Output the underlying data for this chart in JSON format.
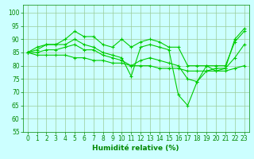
{
  "lines": [
    {
      "x": [
        0,
        1,
        2,
        3,
        4,
        5,
        6,
        7,
        8,
        9,
        10,
        11,
        12,
        13,
        14,
        15,
        16,
        17,
        18,
        19,
        20,
        21,
        22,
        23
      ],
      "y": [
        85,
        87,
        88,
        88,
        90,
        93,
        91,
        91,
        88,
        87,
        90,
        87,
        89,
        90,
        89,
        87,
        87,
        80,
        80,
        80,
        78,
        79,
        90,
        94
      ]
    },
    {
      "x": [
        0,
        1,
        2,
        3,
        4,
        5,
        6,
        7,
        8,
        9,
        10,
        11,
        12,
        13,
        14,
        15,
        16,
        17,
        18,
        19,
        20,
        21,
        22,
        23
      ],
      "y": [
        85,
        86,
        88,
        88,
        88,
        90,
        88,
        87,
        85,
        84,
        83,
        76,
        87,
        88,
        87,
        86,
        69,
        65,
        74,
        80,
        80,
        80,
        89,
        93
      ]
    },
    {
      "x": [
        0,
        1,
        2,
        3,
        4,
        5,
        6,
        7,
        8,
        9,
        10,
        11,
        12,
        13,
        14,
        15,
        16,
        17,
        18,
        19,
        20,
        21,
        22,
        23
      ],
      "y": [
        85,
        85,
        86,
        86,
        87,
        88,
        86,
        86,
        84,
        83,
        82,
        80,
        82,
        83,
        82,
        81,
        80,
        75,
        74,
        78,
        79,
        79,
        83,
        88
      ]
    },
    {
      "x": [
        0,
        1,
        2,
        3,
        4,
        5,
        6,
        7,
        8,
        9,
        10,
        11,
        12,
        13,
        14,
        15,
        16,
        17,
        18,
        19,
        20,
        21,
        22,
        23
      ],
      "y": [
        85,
        84,
        84,
        84,
        84,
        83,
        83,
        82,
        82,
        81,
        81,
        80,
        80,
        80,
        79,
        79,
        79,
        78,
        78,
        78,
        78,
        78,
        79,
        80
      ]
    }
  ],
  "line_color": "#00cc00",
  "marker": "+",
  "markersize": 3.5,
  "linewidth": 0.8,
  "bg_color": "#ccffff",
  "grid_color": "#99cc99",
  "xlabel": "Humidité relative (%)",
  "xlim": [
    -0.5,
    23.5
  ],
  "ylim": [
    55,
    103
  ],
  "yticks": [
    55,
    60,
    65,
    70,
    75,
    80,
    85,
    90,
    95,
    100
  ],
  "xticks": [
    0,
    1,
    2,
    3,
    4,
    5,
    6,
    7,
    8,
    9,
    10,
    11,
    12,
    13,
    14,
    15,
    16,
    17,
    18,
    19,
    20,
    21,
    22,
    23
  ],
  "tick_fontsize": 5.5,
  "xlabel_fontsize": 6.5,
  "label_color": "#008800"
}
